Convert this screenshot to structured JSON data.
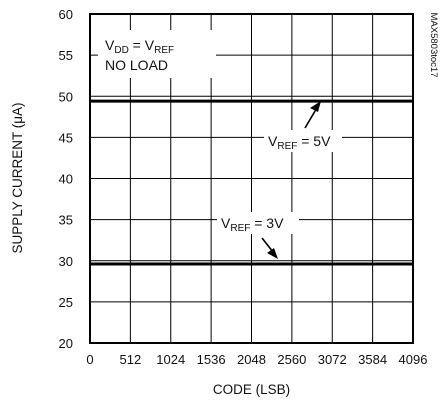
{
  "chart_data": {
    "type": "line",
    "xlabel": "CODE (LSB)",
    "ylabel": "SUPPLY CURRENT (μA)",
    "xlim": [
      0,
      4096
    ],
    "ylim": [
      20,
      60
    ],
    "x_ticks": [
      0,
      512,
      1024,
      1536,
      2048,
      2560,
      3072,
      3584,
      4096
    ],
    "y_ticks": [
      20,
      25,
      30,
      35,
      40,
      45,
      50,
      55,
      60
    ],
    "grid": true,
    "series": [
      {
        "name": "VREF = 5V",
        "x": [
          0,
          4096
        ],
        "y": [
          49.4,
          49.4
        ]
      },
      {
        "name": "VREF = 3V",
        "x": [
          0,
          4096
        ],
        "y": [
          29.6,
          29.6
        ]
      }
    ],
    "annotations": {
      "condition_line1": {
        "v": "V",
        "sub1": "DD",
        "eq": " = V",
        "sub2": "REF"
      },
      "condition_line2": "NO LOAD",
      "label_5v": {
        "v": "V",
        "sub": "REF",
        "rest": " = 5V"
      },
      "label_3v": {
        "v": "V",
        "sub": "REF",
        "rest": " = 3V"
      }
    },
    "figure_id": "MAX5803toc17"
  }
}
